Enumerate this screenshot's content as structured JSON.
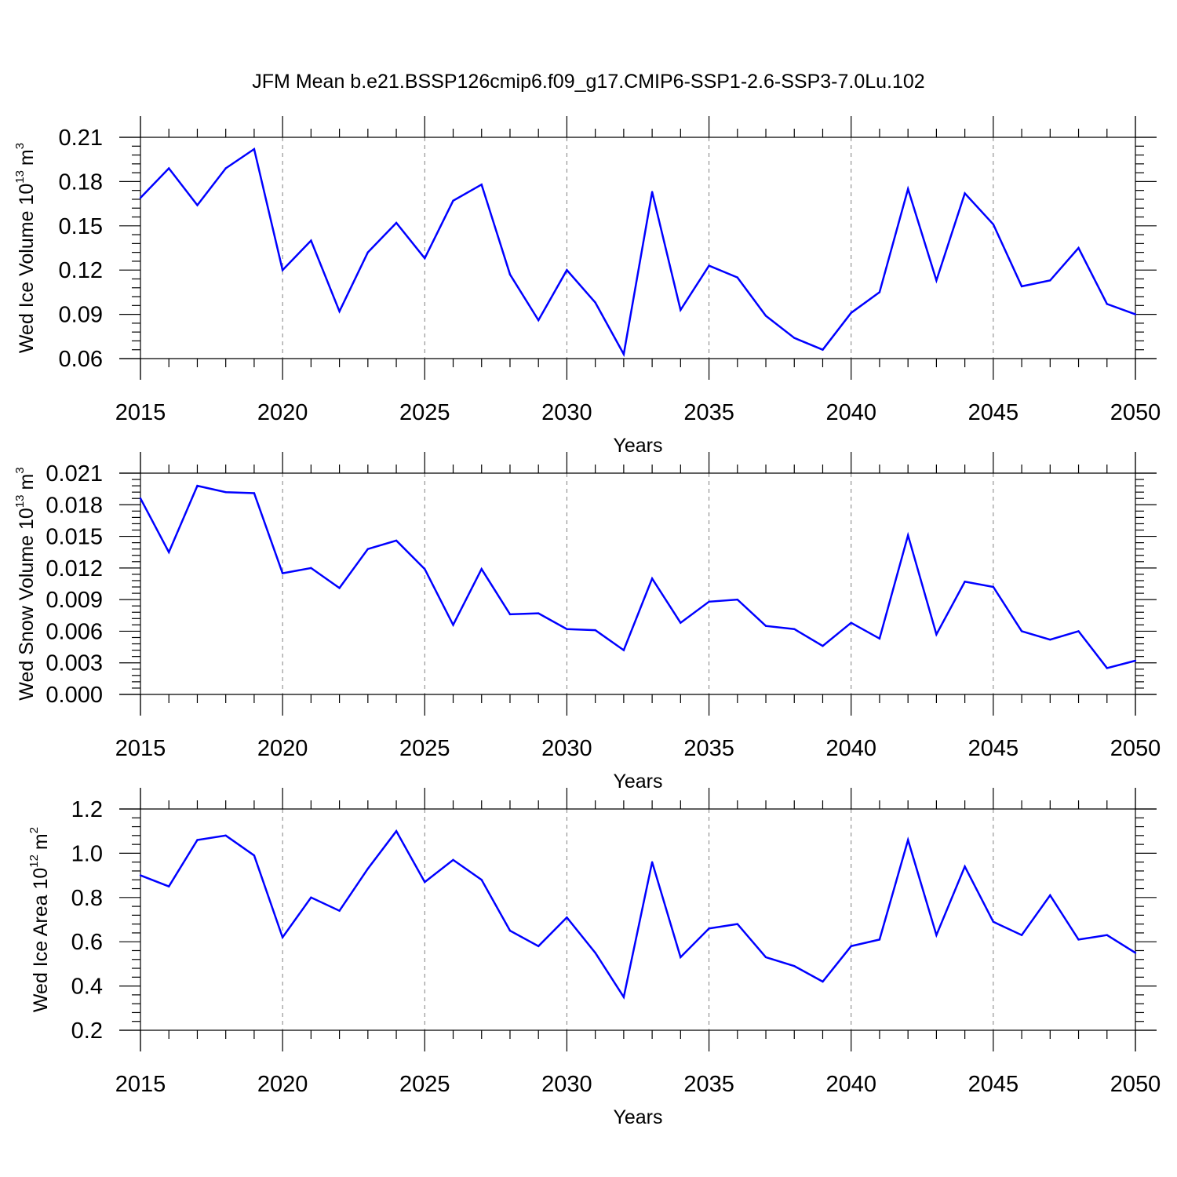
{
  "title": "JFM Mean b.e21.BSSP126cmip6.f09_g17.CMIP6-SSP1-2.6-SSP3-7.0Lu.102",
  "colors": {
    "line": "#0000ff",
    "axis": "#000000",
    "grid": "#808080"
  },
  "chart_data": [
    {
      "type": "line",
      "name": "ice-volume",
      "ylabel_main": "Wed Ice Volume 10",
      "ylabel_exp": "13",
      "ylabel_unit": "m",
      "ylabel_unit_exp": "3",
      "xlabel": "Years",
      "xlim": [
        2015,
        2050
      ],
      "ylim": [
        0.06,
        0.21
      ],
      "yticks": [
        0.06,
        0.09,
        0.12,
        0.15,
        0.18,
        0.21
      ],
      "ytick_labels": [
        "0.06",
        "0.09",
        "0.12",
        "0.15",
        "0.18",
        "0.21"
      ],
      "xticks": [
        2015,
        2020,
        2025,
        2030,
        2035,
        2040,
        2045,
        2050
      ],
      "xtick_labels": [
        "2015",
        "2020",
        "2025",
        "2030",
        "2035",
        "2040",
        "2045",
        "2050"
      ],
      "grid": "vertical dashed at major x ticks",
      "x": [
        2015,
        2016,
        2017,
        2018,
        2019,
        2020,
        2021,
        2022,
        2023,
        2024,
        2025,
        2026,
        2027,
        2028,
        2029,
        2030,
        2031,
        2032,
        2033,
        2034,
        2035,
        2036,
        2037,
        2038,
        2039,
        2040,
        2041,
        2042,
        2043,
        2044,
        2045,
        2046,
        2047,
        2048,
        2049,
        2050
      ],
      "values": [
        0.169,
        0.189,
        0.164,
        0.189,
        0.202,
        0.12,
        0.14,
        0.092,
        0.132,
        0.152,
        0.128,
        0.167,
        0.178,
        0.117,
        0.086,
        0.12,
        0.098,
        0.063,
        0.173,
        0.093,
        0.123,
        0.115,
        0.089,
        0.074,
        0.066,
        0.091,
        0.105,
        0.175,
        0.113,
        0.172,
        0.151,
        0.109,
        0.113,
        0.135,
        0.097,
        0.09
      ]
    },
    {
      "type": "line",
      "name": "snow-volume",
      "ylabel_main": "Wed Snow Volume 10",
      "ylabel_exp": "13",
      "ylabel_unit": "m",
      "ylabel_unit_exp": "3",
      "xlabel": "Years",
      "xlim": [
        2015,
        2050
      ],
      "ylim": [
        0.0,
        0.021
      ],
      "yticks": [
        0.0,
        0.003,
        0.006,
        0.009,
        0.012,
        0.015,
        0.018,
        0.021
      ],
      "ytick_labels": [
        "0.000",
        "0.003",
        "0.006",
        "0.009",
        "0.012",
        "0.015",
        "0.018",
        "0.021"
      ],
      "xticks": [
        2015,
        2020,
        2025,
        2030,
        2035,
        2040,
        2045,
        2050
      ],
      "xtick_labels": [
        "2015",
        "2020",
        "2025",
        "2030",
        "2035",
        "2040",
        "2045",
        "2050"
      ],
      "grid": "vertical dashed at major x ticks",
      "x": [
        2015,
        2016,
        2017,
        2018,
        2019,
        2020,
        2021,
        2022,
        2023,
        2024,
        2025,
        2026,
        2027,
        2028,
        2029,
        2030,
        2031,
        2032,
        2033,
        2034,
        2035,
        2036,
        2037,
        2038,
        2039,
        2040,
        2041,
        2042,
        2043,
        2044,
        2045,
        2046,
        2047,
        2048,
        2049,
        2050
      ],
      "values": [
        0.0186,
        0.0135,
        0.0198,
        0.0192,
        0.0191,
        0.0115,
        0.012,
        0.0101,
        0.0138,
        0.0146,
        0.0119,
        0.0066,
        0.0119,
        0.0076,
        0.0077,
        0.0062,
        0.0061,
        0.0042,
        0.011,
        0.0068,
        0.0088,
        0.009,
        0.0065,
        0.0062,
        0.0046,
        0.0068,
        0.0053,
        0.0151,
        0.0057,
        0.0107,
        0.0102,
        0.006,
        0.0052,
        0.006,
        0.0025,
        0.0032
      ]
    },
    {
      "type": "line",
      "name": "ice-area",
      "ylabel_main": "Wed Ice Area 10",
      "ylabel_exp": "12",
      "ylabel_unit": "m",
      "ylabel_unit_exp": "2",
      "xlabel": "Years",
      "xlim": [
        2015,
        2050
      ],
      "ylim": [
        0.2,
        1.2
      ],
      "yticks": [
        0.2,
        0.4,
        0.6,
        0.8,
        1.0,
        1.2
      ],
      "ytick_labels": [
        "0.2",
        "0.4",
        "0.6",
        "0.8",
        "1.0",
        "1.2"
      ],
      "xticks": [
        2015,
        2020,
        2025,
        2030,
        2035,
        2040,
        2045,
        2050
      ],
      "xtick_labels": [
        "2015",
        "2020",
        "2025",
        "2030",
        "2035",
        "2040",
        "2045",
        "2050"
      ],
      "grid": "vertical dashed at major x ticks",
      "x": [
        2015,
        2016,
        2017,
        2018,
        2019,
        2020,
        2021,
        2022,
        2023,
        2024,
        2025,
        2026,
        2027,
        2028,
        2029,
        2030,
        2031,
        2032,
        2033,
        2034,
        2035,
        2036,
        2037,
        2038,
        2039,
        2040,
        2041,
        2042,
        2043,
        2044,
        2045,
        2046,
        2047,
        2048,
        2049,
        2050
      ],
      "values": [
        0.9,
        0.85,
        1.06,
        1.08,
        0.99,
        0.62,
        0.8,
        0.74,
        0.93,
        1.1,
        0.87,
        0.97,
        0.88,
        0.65,
        0.58,
        0.71,
        0.55,
        0.35,
        0.96,
        0.53,
        0.66,
        0.68,
        0.53,
        0.49,
        0.42,
        0.58,
        0.61,
        1.06,
        0.63,
        0.94,
        0.69,
        0.63,
        0.81,
        0.61,
        0.63,
        0.55
      ]
    }
  ]
}
